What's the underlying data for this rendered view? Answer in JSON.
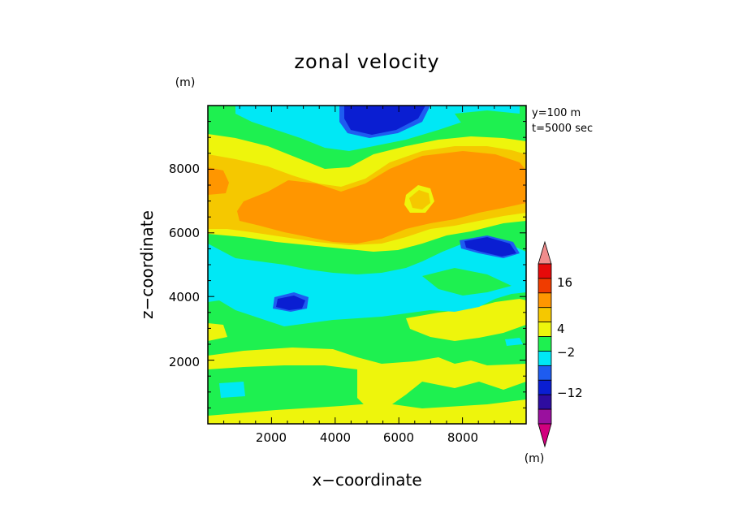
{
  "chart_data": {
    "type": "heatmap",
    "title": "zonal velocity",
    "xlabel": "x−coordinate",
    "ylabel": "z−coordinate",
    "x_unit": "(m)",
    "y_unit": "(m)",
    "xlim": [
      0,
      10000
    ],
    "ylim": [
      0,
      10000
    ],
    "xticks": [
      "2000",
      "4000",
      "6000",
      "8000"
    ],
    "yticks": [
      "2000",
      "4000",
      "6000",
      "8000"
    ],
    "annotations": [
      "y=100 m",
      "t=5000 sec"
    ],
    "colorbar": {
      "labels": [
        "16",
        "4",
        "−2",
        "−12"
      ],
      "colors": [
        "#d2007e",
        "#9a109e",
        "#2e0ca0",
        "#0a1ed2",
        "#1e5cf0",
        "#00e8f5",
        "#1ef050",
        "#eef50c",
        "#f5c800",
        "#ff9600",
        "#f03c00",
        "#e60a0a",
        "#f08c8c"
      ]
    }
  }
}
